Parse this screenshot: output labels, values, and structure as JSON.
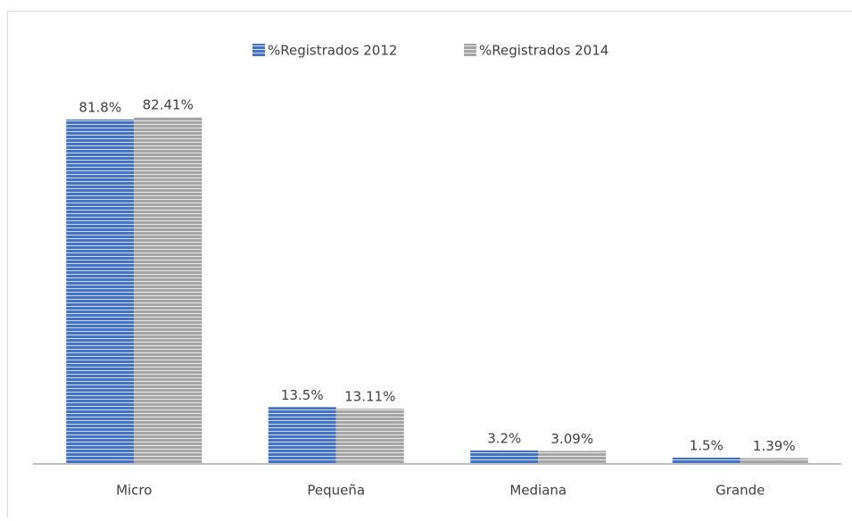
{
  "chart_data": {
    "type": "bar",
    "categories": [
      "Micro",
      "Pequeña",
      "Mediana",
      "Grande"
    ],
    "series": [
      {
        "name": "%Registrados 2012",
        "color": "#4472c4",
        "values": [
          81.8,
          13.5,
          3.2,
          1.5
        ],
        "value_labels": [
          "81.8%",
          "13.5%",
          "3.2%",
          "1.5%"
        ]
      },
      {
        "name": "%Registrados 2014",
        "color": "#a5a5a5",
        "values": [
          82.41,
          13.11,
          3.09,
          1.39
        ],
        "value_labels": [
          "82.41%",
          "13.11%",
          "3.09%",
          "1.39%"
        ]
      }
    ],
    "legend": "top",
    "pattern": "horizontal-lines"
  }
}
